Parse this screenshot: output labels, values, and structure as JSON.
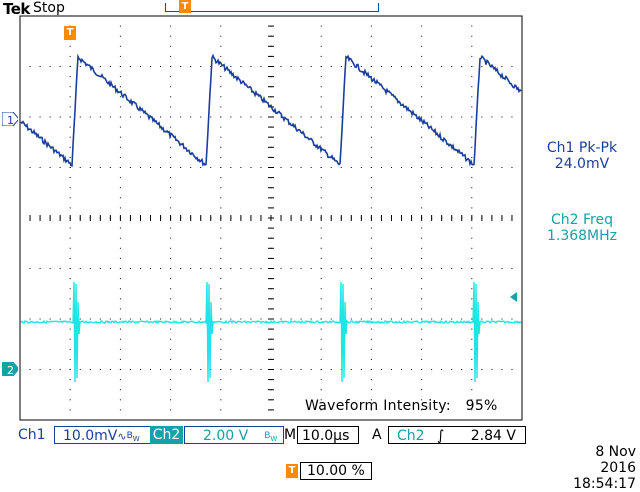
{
  "header": {
    "brand": "Tek",
    "run_state": "Stop",
    "trigger_marker": "T"
  },
  "channel_markers": {
    "ch1": "1",
    "ch2": "2"
  },
  "measurements": [
    {
      "label": "Ch1 Pk-Pk",
      "value": "24.0mV",
      "color": "#1a3f9a"
    },
    {
      "label": "Ch2 Freq",
      "value": "1.368MHz",
      "color": "#14a2a8"
    }
  ],
  "waveform_intensity": {
    "label": "Waveform Intensity:",
    "value": "95%"
  },
  "status_bar": {
    "ch1_label": "Ch1",
    "ch1_scale": "10.0mV",
    "ch1_coupling_icon": "ac-coupling-icon",
    "ch1_bw_icon": "bw-limit-icon",
    "ch2_label": "Ch2",
    "ch2_scale": "2.00 V",
    "ch2_bw_icon": "bw-limit-icon",
    "timebase_label": "M",
    "timebase": "10.0µs",
    "trigger_mode": "A",
    "trigger_source": "Ch2",
    "trigger_slope_icon": "rising-edge-icon",
    "trigger_level": "2.84 V"
  },
  "trigger_position": {
    "marker": "T",
    "value": "10.00 %"
  },
  "datetime": {
    "date": "8 Nov 2016",
    "time": "18:54:17"
  },
  "colors": {
    "ch1": "#1a3f9a",
    "ch2": "#14e0e0",
    "ch2_text": "#14a2a8",
    "trigger": "#ff8a00",
    "grid": "#000000"
  }
}
